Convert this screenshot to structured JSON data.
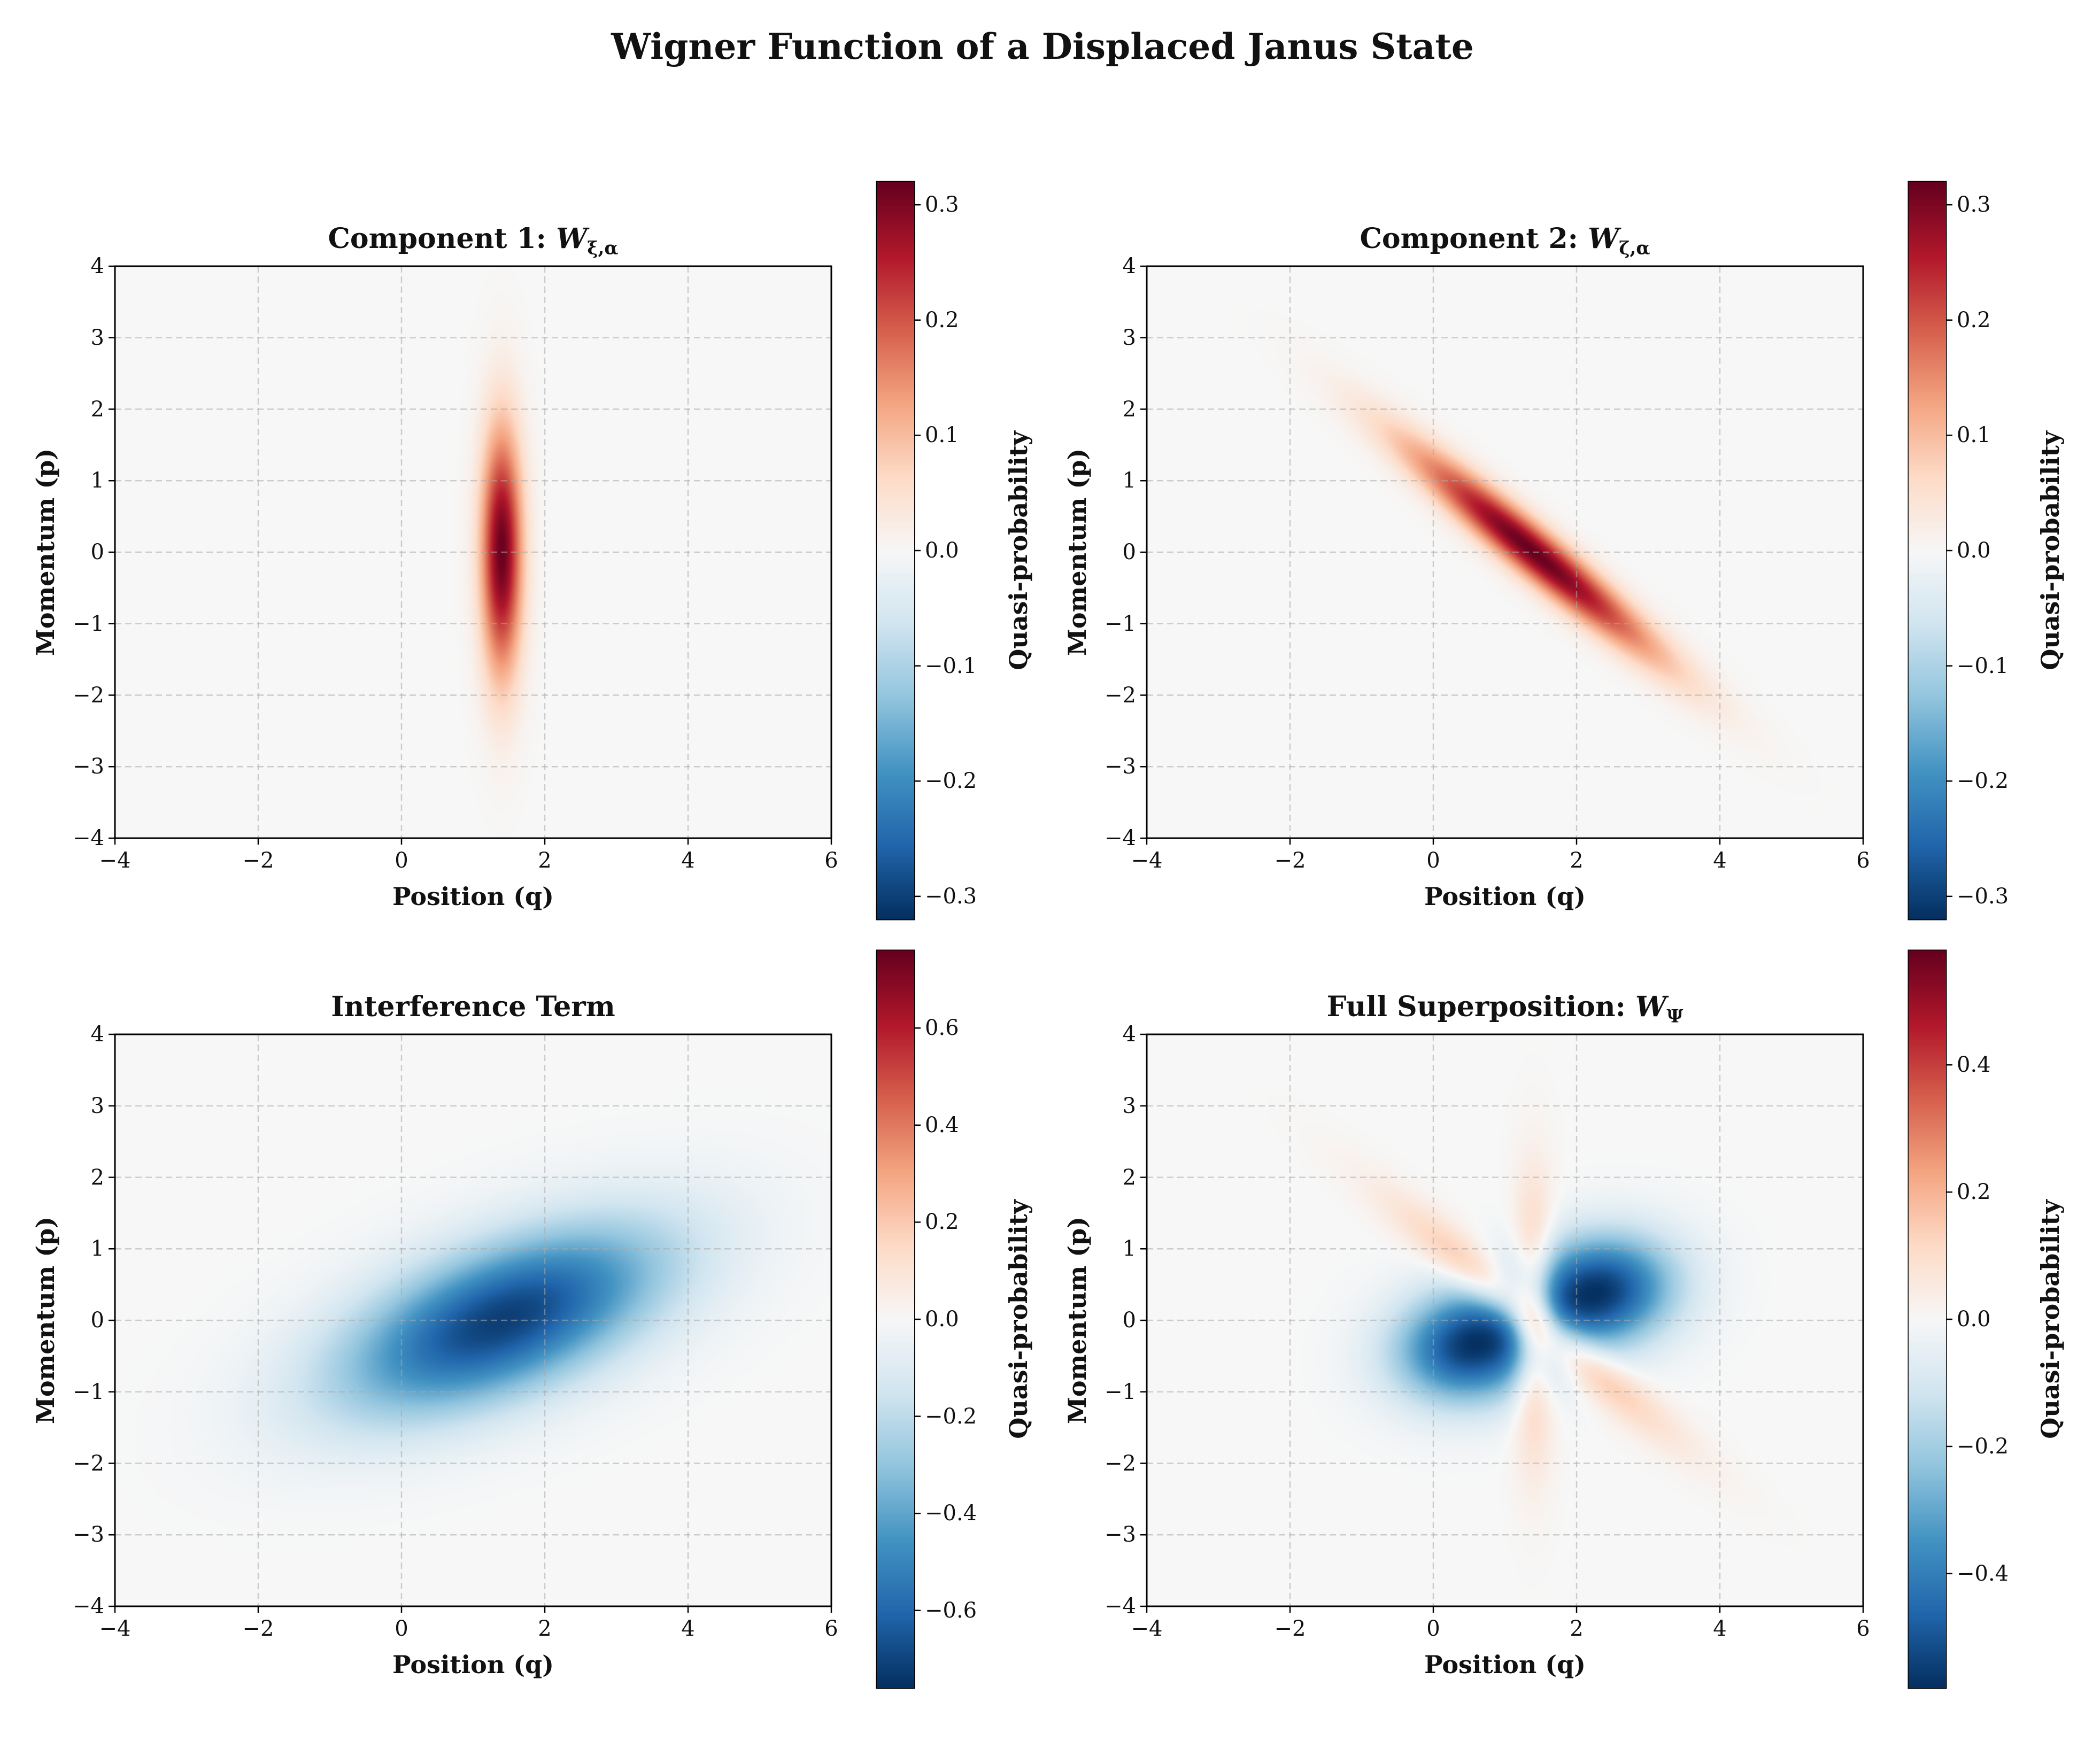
{
  "figure": {
    "title": "Wigner Function of a Displaced Janus State"
  },
  "chart_data": [
    {
      "type": "heatmap",
      "title_text": "Component 1: ",
      "title_math_base": "W",
      "title_math_sub": "ξ,α",
      "xlabel": "Position (q)",
      "ylabel": "Momentum (p)",
      "xlim": [
        -4,
        6
      ],
      "ylim": [
        -4,
        4
      ],
      "xticks": [
        -4,
        -2,
        0,
        2,
        4,
        6
      ],
      "xtick_labels": [
        "−4",
        "−2",
        "0",
        "2",
        "4",
        "6"
      ],
      "yticks": [
        -4,
        -3,
        -2,
        -1,
        0,
        1,
        2,
        3,
        4
      ],
      "ytick_labels": [
        "−4",
        "−3",
        "−2",
        "−1",
        "0",
        "1",
        "2",
        "3",
        "4"
      ],
      "grid": true,
      "colormap": "RdBu_r",
      "colorbar": {
        "label": "Quasi-probability",
        "vmin": -0.32,
        "vmax": 0.32,
        "ticks": [
          -0.3,
          -0.2,
          -0.1,
          0.0,
          0.1,
          0.2,
          0.3
        ],
        "tick_labels": [
          "−0.3",
          "−0.2",
          "−0.1",
          "0.0",
          "0.1",
          "0.2",
          "0.3"
        ]
      },
      "features": [
        {
          "kind": "gaussian",
          "center": [
            1.4,
            0.0
          ],
          "sigma_major": 1.2,
          "sigma_minor": 0.2,
          "angle_deg": 90,
          "peak": 0.318
        }
      ]
    },
    {
      "type": "heatmap",
      "title_text": "Component 2: ",
      "title_math_base": "W",
      "title_math_sub": "ζ,α",
      "xlabel": "Position (q)",
      "ylabel": "Momentum (p)",
      "xlim": [
        -4,
        6
      ],
      "ylim": [
        -4,
        4
      ],
      "xticks": [
        -4,
        -2,
        0,
        2,
        4,
        6
      ],
      "xtick_labels": [
        "−4",
        "−2",
        "0",
        "2",
        "4",
        "6"
      ],
      "yticks": [
        -4,
        -3,
        -2,
        -1,
        0,
        1,
        2,
        3,
        4
      ],
      "ytick_labels": [
        "−4",
        "−3",
        "−2",
        "−1",
        "0",
        "1",
        "2",
        "3",
        "4"
      ],
      "grid": true,
      "colormap": "RdBu_r",
      "colorbar": {
        "label": "Quasi-probability",
        "vmin": -0.32,
        "vmax": 0.32,
        "ticks": [
          -0.3,
          -0.2,
          -0.1,
          0.0,
          0.1,
          0.2,
          0.3
        ],
        "tick_labels": [
          "−0.3",
          "−0.2",
          "−0.1",
          "0.0",
          "0.1",
          "0.2",
          "0.3"
        ]
      },
      "features": [
        {
          "kind": "gaussian",
          "center": [
            1.4,
            0.0
          ],
          "sigma_major": 1.55,
          "sigma_minor": 0.23,
          "angle_deg": -40,
          "peak": 0.318
        }
      ]
    },
    {
      "type": "heatmap",
      "title_text": "Interference Term",
      "title_math_base": "",
      "title_math_sub": "",
      "xlabel": "Position (q)",
      "ylabel": "Momentum (p)",
      "xlim": [
        -4,
        6
      ],
      "ylim": [
        -4,
        4
      ],
      "xticks": [
        -4,
        -2,
        0,
        2,
        4,
        6
      ],
      "xtick_labels": [
        "−4",
        "−2",
        "0",
        "2",
        "4",
        "6"
      ],
      "yticks": [
        -4,
        -3,
        -2,
        -1,
        0,
        1,
        2,
        3,
        4
      ],
      "ytick_labels": [
        "−4",
        "−3",
        "−2",
        "−1",
        "0",
        "1",
        "2",
        "3",
        "4"
      ],
      "grid": true,
      "colormap": "RdBu_r",
      "colorbar": {
        "label": "Quasi-probability",
        "vmin": -0.76,
        "vmax": 0.76,
        "ticks": [
          -0.6,
          -0.4,
          -0.2,
          0.0,
          0.2,
          0.4,
          0.6
        ],
        "tick_labels": [
          "−0.6",
          "−0.4",
          "−0.2",
          "0.0",
          "0.2",
          "0.4",
          "0.6"
        ]
      },
      "features": [
        {
          "kind": "gaussian",
          "center": [
            1.4,
            0.0
          ],
          "sigma_major": 1.7,
          "sigma_minor": 0.72,
          "angle_deg": 22,
          "peak": -0.72
        }
      ]
    },
    {
      "type": "heatmap",
      "title_text": "Full Superposition: ",
      "title_math_base": "W",
      "title_math_sub": "Ψ",
      "xlabel": "Position (q)",
      "ylabel": "Momentum (p)",
      "xlim": [
        -4,
        6
      ],
      "ylim": [
        -4,
        4
      ],
      "xticks": [
        -4,
        -2,
        0,
        2,
        4,
        6
      ],
      "xtick_labels": [
        "−4",
        "−2",
        "0",
        "2",
        "4",
        "6"
      ],
      "yticks": [
        -4,
        -3,
        -2,
        -1,
        0,
        1,
        2,
        3,
        4
      ],
      "ytick_labels": [
        "−4",
        "−3",
        "−2",
        "−1",
        "0",
        "1",
        "2",
        "3",
        "4"
      ],
      "grid": true,
      "colormap": "RdBu_r",
      "colorbar": {
        "label": "Quasi-probability",
        "vmin": -0.58,
        "vmax": 0.58,
        "ticks": [
          -0.4,
          -0.2,
          0.0,
          0.2,
          0.4
        ],
        "tick_labels": [
          "−0.4",
          "−0.2",
          "0.0",
          "0.2",
          "0.4"
        ]
      },
      "features": [
        {
          "kind": "gaussian",
          "center": [
            1.4,
            0.0
          ],
          "sigma_major": 1.2,
          "sigma_minor": 0.2,
          "angle_deg": 90,
          "peak": 0.26
        },
        {
          "kind": "gaussian",
          "center": [
            1.4,
            0.0
          ],
          "sigma_major": 1.55,
          "sigma_minor": 0.23,
          "angle_deg": -40,
          "peak": 0.26
        },
        {
          "kind": "gaussian",
          "center": [
            0.55,
            -0.35
          ],
          "sigma_major": 0.75,
          "sigma_minor": 0.55,
          "angle_deg": 10,
          "peak": -0.56
        },
        {
          "kind": "gaussian",
          "center": [
            2.3,
            0.4
          ],
          "sigma_major": 0.75,
          "sigma_minor": 0.55,
          "angle_deg": 10,
          "peak": -0.56
        }
      ]
    }
  ]
}
